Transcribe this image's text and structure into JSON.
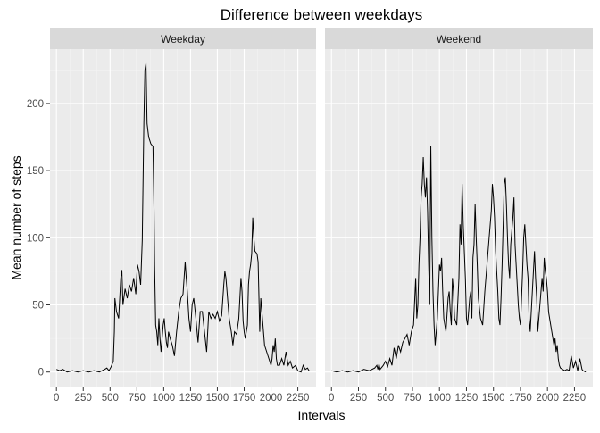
{
  "chart_data": {
    "type": "line",
    "title": "Difference between weekdays",
    "xlabel": "Intervals",
    "ylabel": "Mean number of steps",
    "xlim": [
      0,
      2355
    ],
    "ylim": [
      0,
      230
    ],
    "x_ticks": [
      0,
      250,
      500,
      750,
      1000,
      1250,
      1500,
      1750,
      2000,
      2250
    ],
    "y_ticks": [
      0,
      50,
      100,
      150,
      200
    ],
    "grid": true,
    "facets": [
      {
        "name": "Weekday",
        "points": [
          [
            0,
            2
          ],
          [
            30,
            1
          ],
          [
            60,
            2
          ],
          [
            100,
            0
          ],
          [
            150,
            1
          ],
          [
            200,
            0
          ],
          [
            250,
            1
          ],
          [
            300,
            0
          ],
          [
            350,
            1
          ],
          [
            400,
            0
          ],
          [
            450,
            2
          ],
          [
            470,
            3
          ],
          [
            490,
            1
          ],
          [
            510,
            4
          ],
          [
            530,
            8
          ],
          [
            540,
            30
          ],
          [
            545,
            55
          ],
          [
            560,
            45
          ],
          [
            580,
            40
          ],
          [
            600,
            70
          ],
          [
            610,
            76
          ],
          [
            620,
            50
          ],
          [
            640,
            62
          ],
          [
            660,
            55
          ],
          [
            680,
            65
          ],
          [
            700,
            60
          ],
          [
            720,
            70
          ],
          [
            740,
            58
          ],
          [
            755,
            80
          ],
          [
            770,
            75
          ],
          [
            785,
            65
          ],
          [
            800,
            98
          ],
          [
            815,
            185
          ],
          [
            825,
            225
          ],
          [
            835,
            230
          ],
          [
            845,
            185
          ],
          [
            860,
            175
          ],
          [
            880,
            170
          ],
          [
            900,
            168
          ],
          [
            910,
            120
          ],
          [
            915,
            80
          ],
          [
            925,
            35
          ],
          [
            935,
            30
          ],
          [
            945,
            20
          ],
          [
            955,
            40
          ],
          [
            965,
            25
          ],
          [
            975,
            15
          ],
          [
            985,
            25
          ],
          [
            995,
            35
          ],
          [
            1005,
            40
          ],
          [
            1015,
            30
          ],
          [
            1025,
            22
          ],
          [
            1035,
            18
          ],
          [
            1045,
            30
          ],
          [
            1060,
            25
          ],
          [
            1080,
            20
          ],
          [
            1100,
            12
          ],
          [
            1120,
            30
          ],
          [
            1140,
            45
          ],
          [
            1160,
            55
          ],
          [
            1180,
            58
          ],
          [
            1200,
            82
          ],
          [
            1210,
            70
          ],
          [
            1220,
            60
          ],
          [
            1235,
            40
          ],
          [
            1250,
            30
          ],
          [
            1265,
            50
          ],
          [
            1280,
            55
          ],
          [
            1300,
            40
          ],
          [
            1320,
            22
          ],
          [
            1340,
            45
          ],
          [
            1360,
            45
          ],
          [
            1380,
            30
          ],
          [
            1400,
            15
          ],
          [
            1410,
            30
          ],
          [
            1420,
            45
          ],
          [
            1440,
            40
          ],
          [
            1460,
            43
          ],
          [
            1480,
            40
          ],
          [
            1500,
            45
          ],
          [
            1520,
            38
          ],
          [
            1540,
            42
          ],
          [
            1560,
            65
          ],
          [
            1570,
            75
          ],
          [
            1580,
            70
          ],
          [
            1590,
            60
          ],
          [
            1600,
            50
          ],
          [
            1610,
            40
          ],
          [
            1620,
            35
          ],
          [
            1630,
            30
          ],
          [
            1645,
            20
          ],
          [
            1660,
            30
          ],
          [
            1680,
            28
          ],
          [
            1700,
            40
          ],
          [
            1710,
            55
          ],
          [
            1720,
            70
          ],
          [
            1730,
            60
          ],
          [
            1740,
            38
          ],
          [
            1750,
            30
          ],
          [
            1760,
            25
          ],
          [
            1780,
            35
          ],
          [
            1790,
            65
          ],
          [
            1800,
            75
          ],
          [
            1810,
            80
          ],
          [
            1820,
            88
          ],
          [
            1830,
            115
          ],
          [
            1840,
            100
          ],
          [
            1850,
            90
          ],
          [
            1870,
            88
          ],
          [
            1880,
            82
          ],
          [
            1895,
            30
          ],
          [
            1905,
            55
          ],
          [
            1920,
            40
          ],
          [
            1940,
            20
          ],
          [
            1960,
            15
          ],
          [
            1980,
            10
          ],
          [
            2000,
            5
          ],
          [
            2010,
            10
          ],
          [
            2020,
            20
          ],
          [
            2030,
            15
          ],
          [
            2040,
            25
          ],
          [
            2050,
            10
          ],
          [
            2060,
            5
          ],
          [
            2080,
            5
          ],
          [
            2100,
            10
          ],
          [
            2120,
            5
          ],
          [
            2140,
            15
          ],
          [
            2160,
            5
          ],
          [
            2180,
            8
          ],
          [
            2200,
            3
          ],
          [
            2230,
            5
          ],
          [
            2250,
            1
          ],
          [
            2280,
            0
          ],
          [
            2300,
            5
          ],
          [
            2320,
            2
          ],
          [
            2340,
            3
          ],
          [
            2355,
            1
          ]
        ]
      },
      {
        "name": "Weekend",
        "points": [
          [
            0,
            1
          ],
          [
            50,
            0
          ],
          [
            100,
            1
          ],
          [
            150,
            0
          ],
          [
            200,
            1
          ],
          [
            250,
            0
          ],
          [
            300,
            2
          ],
          [
            350,
            1
          ],
          [
            400,
            3
          ],
          [
            420,
            5
          ],
          [
            430,
            2
          ],
          [
            440,
            6
          ],
          [
            450,
            2
          ],
          [
            480,
            5
          ],
          [
            500,
            8
          ],
          [
            520,
            4
          ],
          [
            540,
            10
          ],
          [
            560,
            5
          ],
          [
            580,
            18
          ],
          [
            600,
            10
          ],
          [
            620,
            20
          ],
          [
            640,
            15
          ],
          [
            660,
            22
          ],
          [
            680,
            25
          ],
          [
            700,
            28
          ],
          [
            720,
            20
          ],
          [
            740,
            30
          ],
          [
            760,
            35
          ],
          [
            780,
            70
          ],
          [
            790,
            40
          ],
          [
            800,
            50
          ],
          [
            810,
            80
          ],
          [
            820,
            100
          ],
          [
            830,
            130
          ],
          [
            840,
            140
          ],
          [
            850,
            160
          ],
          [
            860,
            140
          ],
          [
            870,
            130
          ],
          [
            880,
            145
          ],
          [
            890,
            120
          ],
          [
            900,
            80
          ],
          [
            910,
            50
          ],
          [
            920,
            168
          ],
          [
            930,
            100
          ],
          [
            940,
            60
          ],
          [
            950,
            35
          ],
          [
            960,
            20
          ],
          [
            980,
            40
          ],
          [
            1000,
            80
          ],
          [
            1010,
            75
          ],
          [
            1020,
            85
          ],
          [
            1030,
            60
          ],
          [
            1040,
            40
          ],
          [
            1060,
            30
          ],
          [
            1080,
            55
          ],
          [
            1090,
            60
          ],
          [
            1100,
            45
          ],
          [
            1110,
            35
          ],
          [
            1120,
            70
          ],
          [
            1130,
            60
          ],
          [
            1140,
            40
          ],
          [
            1160,
            35
          ],
          [
            1180,
            70
          ],
          [
            1190,
            110
          ],
          [
            1200,
            95
          ],
          [
            1210,
            140
          ],
          [
            1220,
            110
          ],
          [
            1230,
            90
          ],
          [
            1240,
            70
          ],
          [
            1250,
            40
          ],
          [
            1260,
            35
          ],
          [
            1280,
            55
          ],
          [
            1290,
            60
          ],
          [
            1300,
            40
          ],
          [
            1310,
            85
          ],
          [
            1320,
            95
          ],
          [
            1330,
            125
          ],
          [
            1340,
            100
          ],
          [
            1350,
            80
          ],
          [
            1360,
            55
          ],
          [
            1380,
            40
          ],
          [
            1400,
            35
          ],
          [
            1420,
            60
          ],
          [
            1440,
            80
          ],
          [
            1460,
            100
          ],
          [
            1480,
            120
          ],
          [
            1490,
            140
          ],
          [
            1500,
            130
          ],
          [
            1510,
            115
          ],
          [
            1520,
            90
          ],
          [
            1530,
            75
          ],
          [
            1540,
            60
          ],
          [
            1550,
            40
          ],
          [
            1560,
            35
          ],
          [
            1570,
            55
          ],
          [
            1580,
            80
          ],
          [
            1590,
            110
          ],
          [
            1600,
            140
          ],
          [
            1610,
            145
          ],
          [
            1620,
            125
          ],
          [
            1630,
            100
          ],
          [
            1640,
            80
          ],
          [
            1650,
            70
          ],
          [
            1660,
            95
          ],
          [
            1670,
            105
          ],
          [
            1680,
            115
          ],
          [
            1690,
            130
          ],
          [
            1700,
            95
          ],
          [
            1710,
            80
          ],
          [
            1720,
            65
          ],
          [
            1730,
            50
          ],
          [
            1740,
            40
          ],
          [
            1750,
            35
          ],
          [
            1760,
            55
          ],
          [
            1770,
            75
          ],
          [
            1780,
            100
          ],
          [
            1790,
            110
          ],
          [
            1800,
            95
          ],
          [
            1810,
            80
          ],
          [
            1820,
            70
          ],
          [
            1830,
            40
          ],
          [
            1840,
            30
          ],
          [
            1850,
            45
          ],
          [
            1860,
            60
          ],
          [
            1870,
            75
          ],
          [
            1880,
            90
          ],
          [
            1890,
            70
          ],
          [
            1900,
            55
          ],
          [
            1910,
            30
          ],
          [
            1920,
            40
          ],
          [
            1930,
            50
          ],
          [
            1940,
            60
          ],
          [
            1950,
            70
          ],
          [
            1960,
            60
          ],
          [
            1970,
            85
          ],
          [
            1980,
            75
          ],
          [
            1990,
            70
          ],
          [
            2000,
            60
          ],
          [
            2010,
            45
          ],
          [
            2020,
            40
          ],
          [
            2040,
            30
          ],
          [
            2060,
            20
          ],
          [
            2070,
            25
          ],
          [
            2080,
            15
          ],
          [
            2090,
            20
          ],
          [
            2100,
            10
          ],
          [
            2110,
            5
          ],
          [
            2120,
            3
          ],
          [
            2140,
            2
          ],
          [
            2160,
            1
          ],
          [
            2180,
            2
          ],
          [
            2200,
            1
          ],
          [
            2220,
            12
          ],
          [
            2240,
            3
          ],
          [
            2260,
            8
          ],
          [
            2280,
            1
          ],
          [
            2300,
            10
          ],
          [
            2320,
            2
          ],
          [
            2330,
            1
          ],
          [
            2355,
            0
          ]
        ]
      }
    ]
  }
}
